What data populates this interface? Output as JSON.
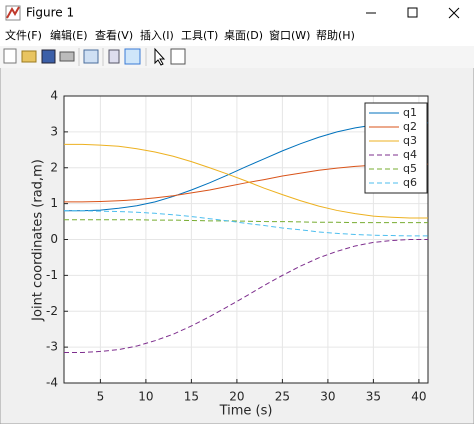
{
  "window": {
    "title": "Figure 1",
    "menu": [
      "文件(F)",
      "编辑(E)",
      "查看(V)",
      "插入(I)",
      "工具(T)",
      "桌面(D)",
      "窗口(W)",
      "帮助(H)"
    ]
  },
  "chart_data": {
    "type": "line",
    "xlabel": "Time (s)",
    "ylabel": "Joint coordinates (rad,m)",
    "x": [
      1,
      3,
      5,
      7,
      9,
      11,
      13,
      15,
      17,
      19,
      21,
      23,
      25,
      27,
      29,
      31,
      33,
      35,
      37,
      39,
      41
    ],
    "xlim": [
      1,
      41
    ],
    "xticks": [
      5,
      10,
      15,
      20,
      25,
      30,
      35,
      40
    ],
    "ylim": [
      -4,
      4
    ],
    "yticks": [
      -4,
      -3,
      -2,
      -1,
      0,
      1,
      2,
      3,
      4
    ],
    "grid": true,
    "legend": "northeast",
    "series": [
      {
        "name": "q1",
        "color": "#0072bd",
        "linestyle": "-",
        "values": [
          0.8,
          0.8,
          0.82,
          0.87,
          0.94,
          1.05,
          1.2,
          1.38,
          1.58,
          1.8,
          2.03,
          2.25,
          2.47,
          2.67,
          2.85,
          3.0,
          3.11,
          3.19,
          3.23,
          3.25,
          3.25
        ]
      },
      {
        "name": "q2",
        "color": "#d95319",
        "linestyle": "-",
        "values": [
          1.05,
          1.05,
          1.06,
          1.08,
          1.11,
          1.16,
          1.22,
          1.3,
          1.38,
          1.48,
          1.58,
          1.67,
          1.77,
          1.85,
          1.93,
          1.99,
          2.04,
          2.07,
          2.09,
          2.1,
          2.1
        ]
      },
      {
        "name": "q3",
        "color": "#edb120",
        "linestyle": "-",
        "values": [
          2.65,
          2.65,
          2.63,
          2.6,
          2.53,
          2.44,
          2.32,
          2.17,
          2.0,
          1.82,
          1.63,
          1.43,
          1.25,
          1.08,
          0.93,
          0.81,
          0.72,
          0.65,
          0.62,
          0.6,
          0.6
        ]
      },
      {
        "name": "q4",
        "color": "#7e2f8e",
        "linestyle": "--",
        "values": [
          -3.15,
          -3.15,
          -3.12,
          -3.07,
          -2.97,
          -2.82,
          -2.64,
          -2.41,
          -2.15,
          -1.87,
          -1.58,
          -1.28,
          -1.0,
          -0.74,
          -0.51,
          -0.33,
          -0.18,
          -0.08,
          -0.03,
          0,
          0
        ]
      },
      {
        "name": "q5",
        "color": "#77ac30",
        "linestyle": "--",
        "values": [
          0.55,
          0.55,
          0.55,
          0.55,
          0.55,
          0.54,
          0.54,
          0.53,
          0.52,
          0.52,
          0.51,
          0.5,
          0.5,
          0.49,
          0.48,
          0.48,
          0.47,
          0.47,
          0.47,
          0.47,
          0.47
        ]
      },
      {
        "name": "q6",
        "color": "#4dbeee",
        "linestyle": "--",
        "values": [
          0.8,
          0.8,
          0.79,
          0.78,
          0.76,
          0.73,
          0.69,
          0.64,
          0.58,
          0.52,
          0.45,
          0.39,
          0.32,
          0.27,
          0.21,
          0.17,
          0.14,
          0.12,
          0.11,
          0.1,
          0.1
        ]
      }
    ]
  }
}
